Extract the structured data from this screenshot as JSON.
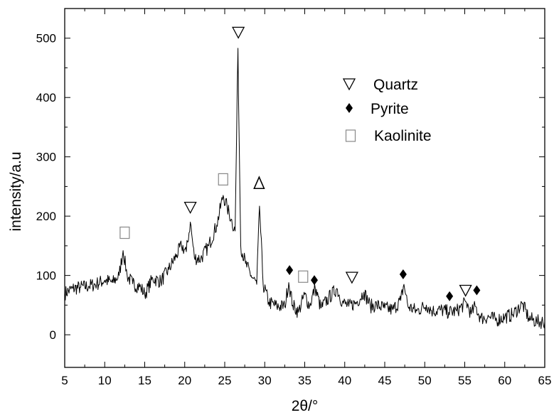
{
  "chart_data": {
    "type": "line",
    "title": "",
    "xlabel": "2θ/°",
    "ylabel": "intensity/a.u",
    "xlim": [
      5,
      65
    ],
    "ylim": [
      -55,
      550
    ],
    "x_ticks": [
      5,
      10,
      15,
      20,
      25,
      30,
      35,
      40,
      45,
      50,
      55,
      60,
      65
    ],
    "y_ticks": [
      0,
      100,
      200,
      300,
      400,
      500
    ],
    "grid": false,
    "legend_position": "top-right",
    "series": [
      {
        "points": [
          [
            5,
            70
          ],
          [
            6,
            78
          ],
          [
            7,
            80
          ],
          [
            8,
            82
          ],
          [
            9,
            86
          ],
          [
            10,
            92
          ],
          [
            11,
            88
          ],
          [
            11.8,
            100
          ],
          [
            12.3,
            142
          ],
          [
            12.8,
            100
          ],
          [
            13.5,
            86
          ],
          [
            14.5,
            80
          ],
          [
            15,
            68
          ],
          [
            16,
            95
          ],
          [
            17,
            90
          ],
          [
            18,
            110
          ],
          [
            19,
            135
          ],
          [
            19.6,
            150
          ],
          [
            20.2,
            140
          ],
          [
            20.7,
            190
          ],
          [
            21.2,
            130
          ],
          [
            22,
            128
          ],
          [
            23,
            150
          ],
          [
            24,
            185
          ],
          [
            24.8,
            235
          ],
          [
            25.3,
            215
          ],
          [
            25.8,
            195
          ],
          [
            26.3,
            175
          ],
          [
            26.65,
            483
          ],
          [
            27.0,
            150
          ],
          [
            27.6,
            120
          ],
          [
            28.3,
            100
          ],
          [
            29.0,
            85
          ],
          [
            29.35,
            217
          ],
          [
            29.8,
            85
          ],
          [
            30.5,
            55
          ],
          [
            31.5,
            48
          ],
          [
            32.5,
            48
          ],
          [
            33.0,
            88
          ],
          [
            33.5,
            50
          ],
          [
            34.2,
            38
          ],
          [
            35.0,
            68
          ],
          [
            35.6,
            48
          ],
          [
            36.3,
            80
          ],
          [
            37,
            45
          ],
          [
            38,
            62
          ],
          [
            39,
            78
          ],
          [
            39.7,
            55
          ],
          [
            40.5,
            48
          ],
          [
            41.5,
            55
          ],
          [
            42.4,
            72
          ],
          [
            43.2,
            48
          ],
          [
            44,
            50
          ],
          [
            45,
            45
          ],
          [
            46,
            42
          ],
          [
            47.0,
            58
          ],
          [
            47.4,
            85
          ],
          [
            47.9,
            48
          ],
          [
            49,
            40
          ],
          [
            50.2,
            50
          ],
          [
            51,
            40
          ],
          [
            52,
            42
          ],
          [
            53,
            38
          ],
          [
            54,
            40
          ],
          [
            55.2,
            55
          ],
          [
            55.8,
            35
          ],
          [
            56.3,
            48
          ],
          [
            57,
            28
          ],
          [
            58,
            30
          ],
          [
            59,
            25
          ],
          [
            60,
            30
          ],
          [
            61,
            34
          ],
          [
            62.2,
            52
          ],
          [
            63,
            28
          ],
          [
            64,
            22
          ],
          [
            65,
            22
          ]
        ]
      }
    ],
    "legend": [
      {
        "marker": "triangle-down-open",
        "label": "Quartz"
      },
      {
        "marker": "diamond-filled",
        "label": "Pyrite"
      },
      {
        "marker": "square-open",
        "label": "Kaolinite"
      }
    ],
    "annotations": [
      {
        "marker": "square-open",
        "x": 12.5,
        "y": 172
      },
      {
        "marker": "triangle-down-open",
        "x": 20.7,
        "y": 215
      },
      {
        "marker": "square-open",
        "x": 24.8,
        "y": 262
      },
      {
        "marker": "triangle-down-open",
        "x": 26.7,
        "y": 510
      },
      {
        "marker": "triangle-up-open",
        "x": 29.3,
        "y": 255
      },
      {
        "marker": "diamond-filled",
        "x": 33.1,
        "y": 109
      },
      {
        "marker": "square-open",
        "x": 34.8,
        "y": 98
      },
      {
        "marker": "diamond-filled",
        "x": 36.2,
        "y": 92
      },
      {
        "marker": "triangle-down-open",
        "x": 40.9,
        "y": 97
      },
      {
        "marker": "diamond-filled",
        "x": 47.3,
        "y": 102
      },
      {
        "marker": "diamond-filled",
        "x": 53.1,
        "y": 65
      },
      {
        "marker": "triangle-down-open",
        "x": 55.1,
        "y": 75
      },
      {
        "marker": "diamond-filled",
        "x": 56.5,
        "y": 75
      }
    ]
  }
}
